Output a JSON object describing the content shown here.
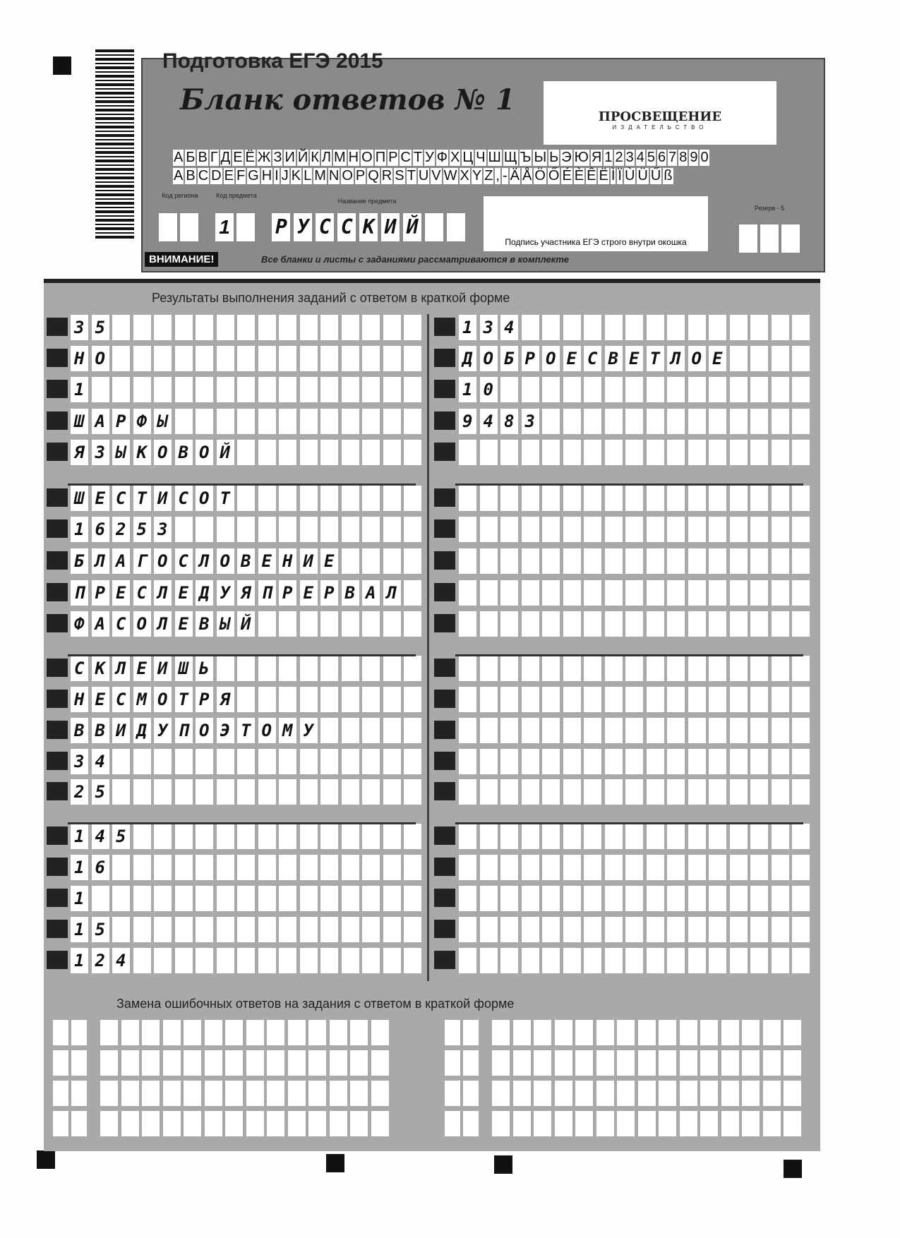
{
  "header": {
    "top_title": "Подготовка ЕГЭ 2015",
    "form_title": "Бланк ответов № 1",
    "publisher": "ПРОСВЕЩЕНИЕ",
    "publisher_sub": "ИЗДАТЕЛЬСТВО",
    "alphabet_row1": [
      "А",
      "Б",
      "В",
      "Г",
      "Д",
      "Е",
      "Ё",
      "Ж",
      "З",
      "И",
      "Й",
      "К",
      "Л",
      "М",
      "Н",
      "О",
      "П",
      "Р",
      "С",
      "Т",
      "У",
      "Ф",
      "Х",
      "Ц",
      "Ч",
      "Ш",
      "Щ",
      "Ъ",
      "Ы",
      "Ь",
      "Э",
      "Ю",
      "Я",
      "1",
      "2",
      "3",
      "4",
      "5",
      "6",
      "7",
      "8",
      "9",
      "0"
    ],
    "alphabet_row2": [
      "A",
      "B",
      "C",
      "D",
      "E",
      "F",
      "G",
      "H",
      "I",
      "J",
      "K",
      "L",
      "M",
      "N",
      "O",
      "P",
      "Q",
      "R",
      "S",
      "T",
      "U",
      "V",
      "W",
      "X",
      "Y",
      "Z",
      ",",
      "-",
      "Ä",
      "Å",
      "Ö",
      "Ő",
      "É",
      "È",
      "Ê",
      "Ë",
      "Ì",
      "Ï",
      "Ù",
      "Ü",
      "Ű",
      "ß"
    ],
    "region_label": "Код региона",
    "subject_code_label": "Код предмета",
    "subject_name_label": "Название предмета",
    "subject_code": "1",
    "subject_name": "РУССКИЙ",
    "signature_label": "Подпись участника ЕГЭ строго внутри окошка",
    "reserve_label": "Резерв - 5",
    "attention": "ВНИМАНИЕ!",
    "attention_text": "Все бланки и листы с заданиями рассматриваются в комплекте"
  },
  "answers": {
    "title": "Результаты выполнения заданий с ответом в краткой форме",
    "left": [
      "35",
      "НО",
      "1",
      "ШАРФЫ",
      "ЯЗЫКОВОЙ",
      "ШЕСТИСОТ",
      "16253",
      "БЛАГОСЛОВЕНИЕ",
      "ПРЕСЛЕДУЯПРЕРВАЛ",
      "ФАСОЛЕВЫЙ",
      "СКЛЕИШЬ",
      "НЕСМОТРЯ",
      "ВВИДУПОЭТОМУ",
      "34",
      "25",
      "145",
      "16",
      "1",
      "15",
      "124"
    ],
    "right": [
      "134",
      "ДОБРОЕСВЕТЛОЕ",
      "10",
      "9483",
      "",
      "",
      "",
      "",
      "",
      "",
      "",
      "",
      "",
      "",
      "",
      "",
      "",
      "",
      "",
      ""
    ]
  },
  "replacement": {
    "title": "Замена ошибочных ответов на задания с ответом в краткой форме"
  }
}
